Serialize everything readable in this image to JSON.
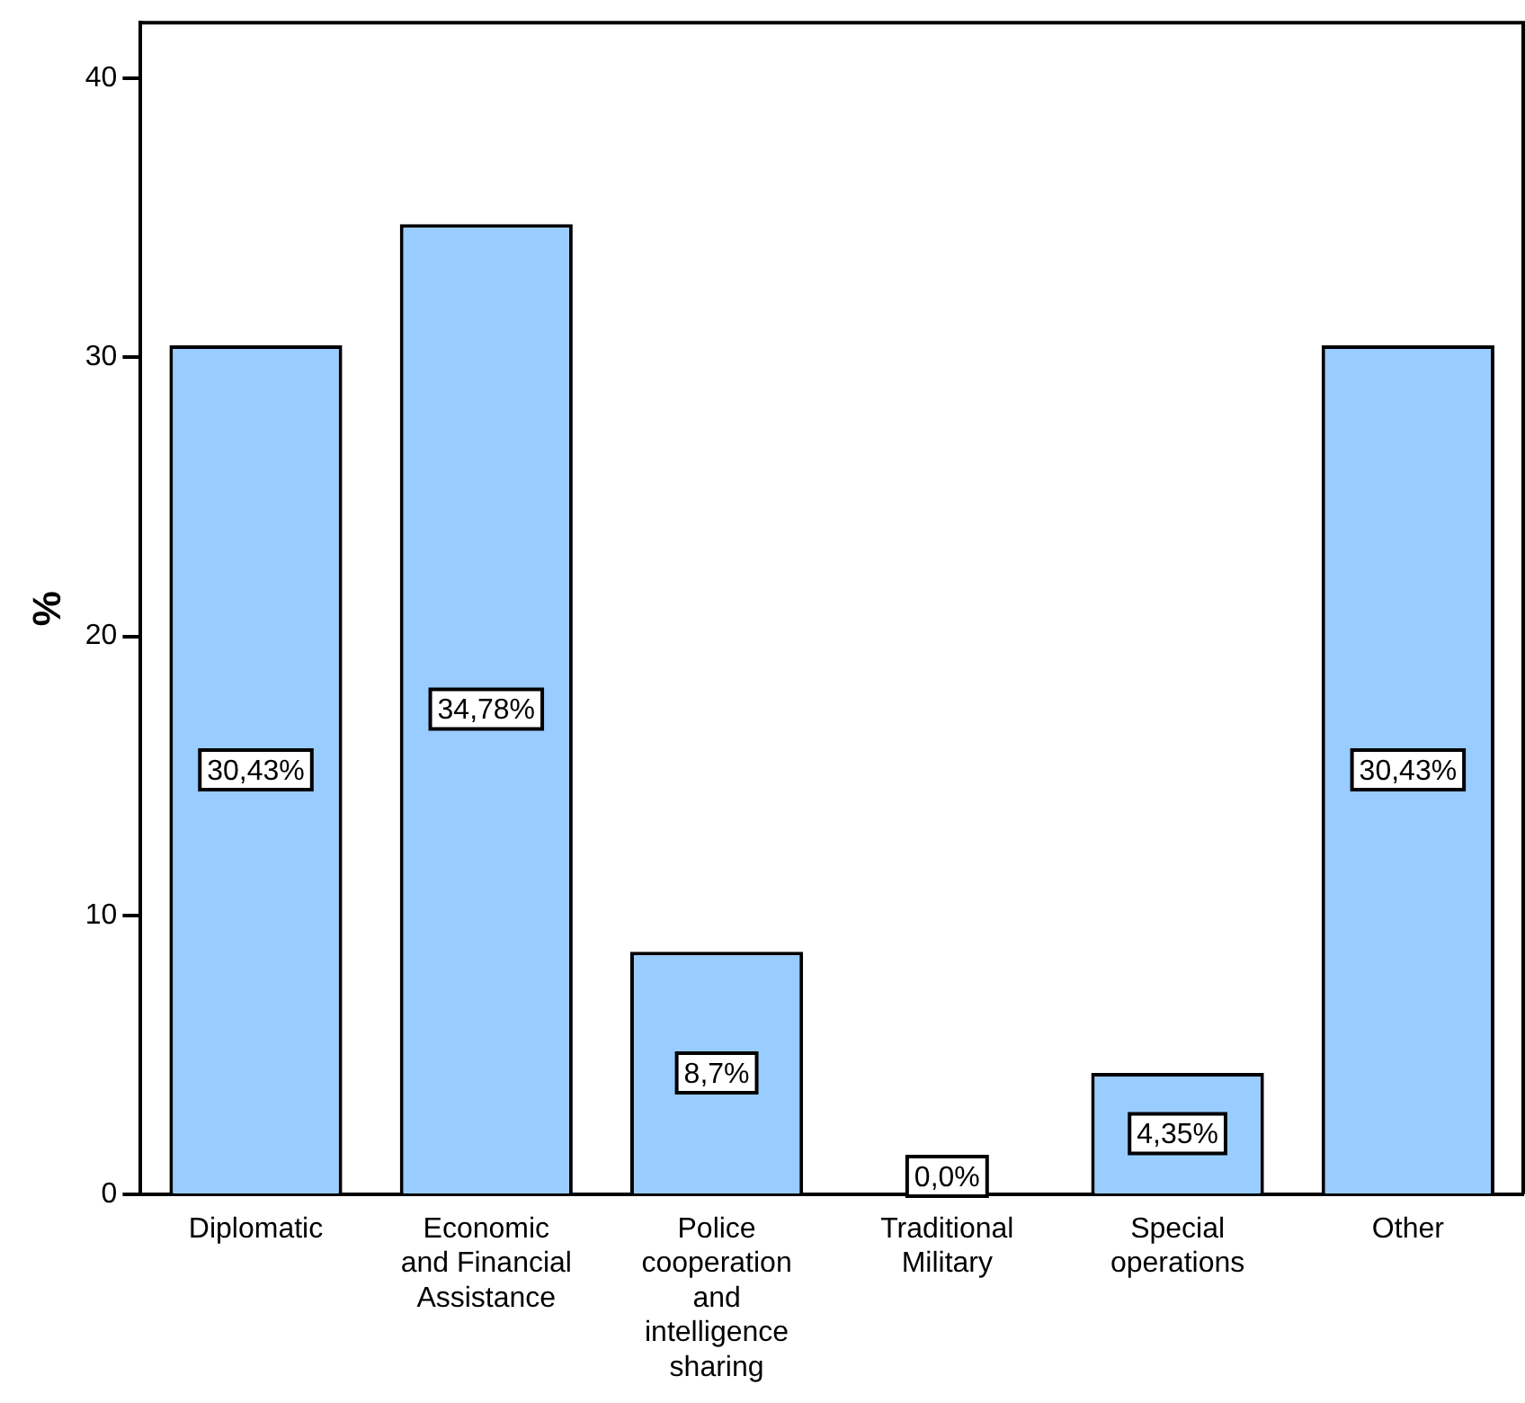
{
  "chart_data": {
    "type": "bar",
    "ylabel": "%",
    "categories": [
      "Diplomatic",
      "Economic and Financial Assistance",
      "Police cooperation and intelligence sharing",
      "Traditional Military",
      "Special operations",
      "Other"
    ],
    "values": [
      30.43,
      34.78,
      8.7,
      0,
      4.35,
      30.43
    ],
    "value_labels": [
      "30,43%",
      "34,78%",
      "8,7%",
      "0,0%",
      "4,35%",
      "30,43%"
    ],
    "color": "#99ccff",
    "ylim": [
      0,
      42
    ],
    "yticks": [
      0,
      10,
      20,
      30,
      40
    ],
    "grid": false,
    "legend": false
  }
}
